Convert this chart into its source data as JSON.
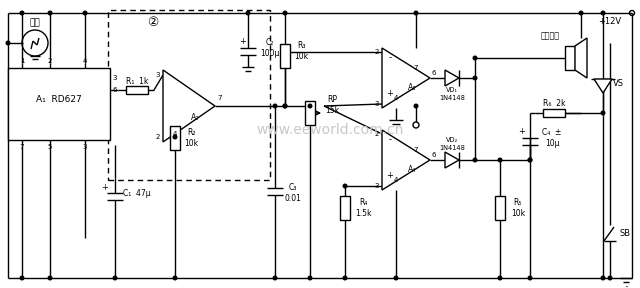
{
  "bg_color": "#ffffff",
  "line_color": "#000000",
  "watermark": "www.eeworld.com.cn",
  "watermark_color": "#c8c8c8",
  "components": {
    "antenna_label": "天线",
    "ic_label": "A₁  RD627",
    "block2_label": "②",
    "R1": "R₁  1k",
    "R2": "R₂\n10k",
    "R3": "R₃\n10k",
    "R4": "R₄\n1.5k",
    "R5": "R₅\n10k",
    "R6": "R₆  2k",
    "RP": "RP\n15k",
    "C1": "C₁  47μ",
    "C2": "C₂\n100μ",
    "C3": "C₃\n0.01",
    "C4": "C₄  ±\n10μ",
    "A2": "A₂",
    "A3": "A₃",
    "A4": "A₄",
    "VD1": "VD₁\n1N4148",
    "VD2": "VD₂\n1N4148",
    "VS": "VS",
    "alarm": "报警振鈴",
    "power": "+12V",
    "SB": "SB"
  }
}
